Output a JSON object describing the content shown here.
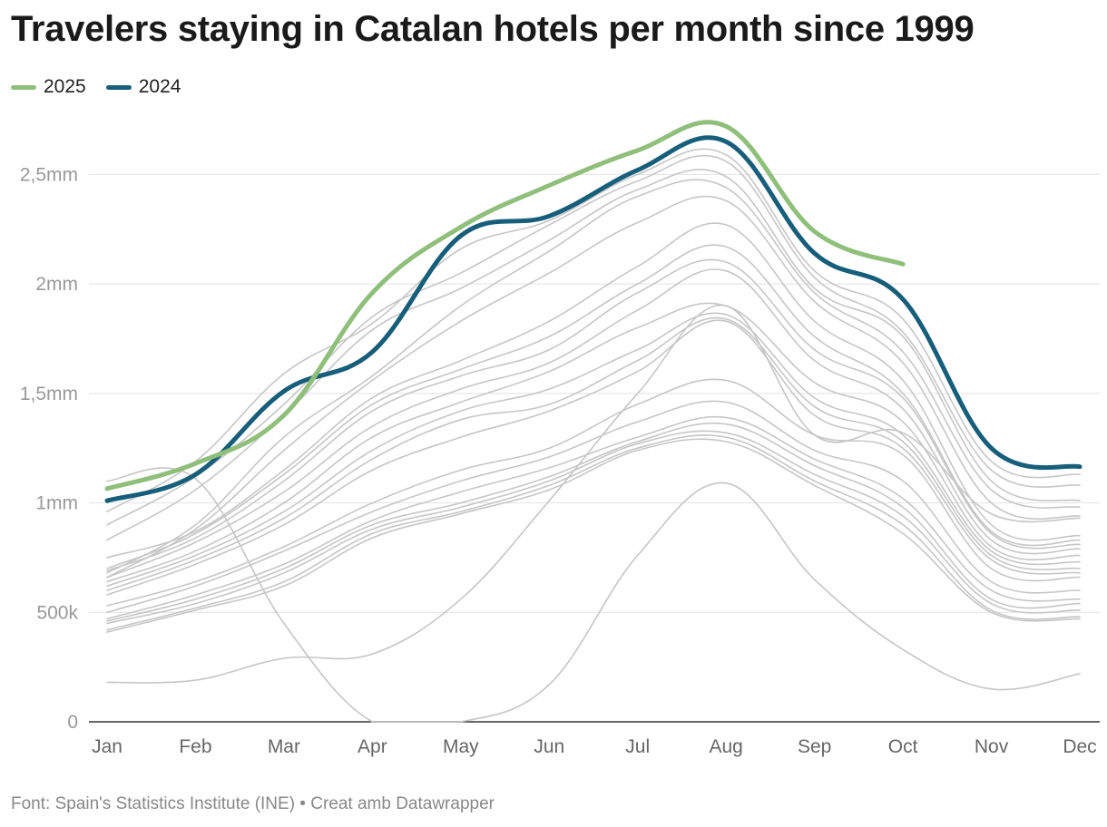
{
  "chart_data": {
    "type": "line",
    "title": "Travelers staying in Catalan hotels per month since 1999",
    "xlabel": "",
    "ylabel": "",
    "categories": [
      "Jan",
      "Feb",
      "Mar",
      "Apr",
      "May",
      "Jun",
      "Jul",
      "Aug",
      "Sep",
      "Oct",
      "Nov",
      "Dec"
    ],
    "ylim": [
      0,
      2800000
    ],
    "yticks": [
      0,
      500000,
      1000000,
      1500000,
      2000000,
      2500000
    ],
    "ytick_labels": [
      "0",
      "500k",
      "1mm",
      "1,5mm",
      "2mm",
      "2,5mm"
    ],
    "grid": true,
    "legend_position": "top-left",
    "series": [
      {
        "name": "2025",
        "color": "#8fbf7a",
        "highlight": true,
        "values": [
          1065000,
          1180000,
          1400000,
          1960000,
          2260000,
          2450000,
          2610000,
          2720000,
          2240000,
          2090000,
          null,
          null
        ]
      },
      {
        "name": "2024",
        "color": "#175e7a",
        "highlight": true,
        "values": [
          1010000,
          1130000,
          1510000,
          1690000,
          2220000,
          2310000,
          2520000,
          2650000,
          2140000,
          1930000,
          1250000,
          1165000
        ]
      },
      {
        "color": "#c6c6c6",
        "values": [
          960000,
          1190000,
          1590000,
          1820000,
          2160000,
          2290000,
          2500000,
          2590000,
          2060000,
          1840000,
          1190000,
          1130000
        ]
      },
      {
        "color": "#c6c6c6",
        "values": [
          900000,
          1120000,
          1450000,
          1850000,
          2050000,
          2270000,
          2470000,
          2560000,
          2030000,
          1780000,
          1150000,
          1080000
        ]
      },
      {
        "color": "#c6c6c6",
        "values": [
          830000,
          1060000,
          1400000,
          1790000,
          1980000,
          2200000,
          2430000,
          2490000,
          1980000,
          1760000,
          1100000,
          1010000
        ]
      },
      {
        "color": "#c6c6c6",
        "values": [
          680000,
          900000,
          1300000,
          1580000,
          1900000,
          2150000,
          2400000,
          2440000,
          1960000,
          1690000,
          1060000,
          980000
        ]
      },
      {
        "color": "#c6c6c6",
        "values": [
          660000,
          880000,
          1240000,
          1560000,
          1830000,
          2050000,
          2280000,
          2380000,
          1920000,
          1640000,
          1000000,
          940000
        ]
      },
      {
        "color": "#c6c6c6",
        "values": [
          750000,
          870000,
          1150000,
          1480000,
          1650000,
          1830000,
          2080000,
          2270000,
          1830000,
          1560000,
          900000,
          850000
        ]
      },
      {
        "color": "#c6c6c6",
        "values": [
          700000,
          860000,
          1130000,
          1450000,
          1610000,
          1760000,
          2000000,
          2170000,
          1760000,
          1500000,
          870000,
          830000
        ]
      },
      {
        "color": "#c6c6c6",
        "values": [
          690000,
          840000,
          1100000,
          1420000,
          1580000,
          1700000,
          1960000,
          2100000,
          1700000,
          1480000,
          860000,
          810000
        ]
      },
      {
        "color": "#c6c6c6",
        "values": [
          660000,
          820000,
          1050000,
          1350000,
          1520000,
          1640000,
          1880000,
          2060000,
          1650000,
          1430000,
          830000,
          790000
        ]
      },
      {
        "color": "#c6c6c6",
        "values": [
          640000,
          780000,
          1000000,
          1300000,
          1460000,
          1600000,
          1800000,
          1900000,
          1550000,
          1370000,
          800000,
          760000
        ]
      },
      {
        "color": "#c6c6c6",
        "values": [
          620000,
          760000,
          960000,
          1240000,
          1420000,
          1520000,
          1700000,
          1860000,
          1480000,
          1310000,
          780000,
          730000
        ]
      },
      {
        "color": "#c6c6c6",
        "values": [
          600000,
          740000,
          930000,
          1200000,
          1380000,
          1450000,
          1650000,
          1840000,
          1440000,
          1280000,
          760000,
          700000
        ]
      },
      {
        "color": "#c6c6c6",
        "values": [
          580000,
          720000,
          900000,
          1150000,
          1300000,
          1420000,
          1600000,
          1830000,
          1400000,
          1250000,
          740000,
          680000
        ]
      },
      {
        "color": "#c6c6c6",
        "values": [
          530000,
          640000,
          800000,
          1000000,
          1150000,
          1250000,
          1450000,
          1560000,
          1310000,
          1220000,
          700000,
          660000
        ]
      },
      {
        "color": "#c6c6c6",
        "values": [
          500000,
          620000,
          780000,
          960000,
          1100000,
          1210000,
          1370000,
          1460000,
          1240000,
          1100000,
          640000,
          600000
        ]
      },
      {
        "color": "#c6c6c6",
        "values": [
          470000,
          580000,
          720000,
          920000,
          1050000,
          1160000,
          1300000,
          1390000,
          1200000,
          1020000,
          600000,
          560000
        ]
      },
      {
        "color": "#c6c6c6",
        "values": [
          460000,
          560000,
          700000,
          900000,
          1000000,
          1120000,
          1280000,
          1360000,
          1170000,
          980000,
          560000,
          540000
        ]
      },
      {
        "color": "#c6c6c6",
        "values": [
          450000,
          540000,
          680000,
          880000,
          980000,
          1100000,
          1270000,
          1320000,
          1130000,
          940000,
          540000,
          510000
        ]
      },
      {
        "color": "#c6c6c6",
        "values": [
          420000,
          520000,
          640000,
          860000,
          960000,
          1080000,
          1250000,
          1300000,
          1100000,
          900000,
          510000,
          480000
        ]
      },
      {
        "color": "#c6c6c6",
        "values": [
          410000,
          510000,
          620000,
          840000,
          950000,
          1060000,
          1240000,
          1280000,
          1080000,
          860000,
          500000,
          470000
        ]
      },
      {
        "color": "#c6c6c6",
        "values": [
          1100000,
          1110000,
          450000,
          0,
          0,
          170000,
          760000,
          1090000,
          650000,
          330000,
          150000,
          220000
        ]
      },
      {
        "color": "#c6c6c6",
        "values": [
          180000,
          190000,
          290000,
          310000,
          560000,
          1010000,
          1500000,
          1900000,
          1310000,
          1320000,
          950000,
          930000
        ]
      }
    ]
  },
  "source": "Font: Spain's Statistics Institute (INE) • Creat amb Datawrapper"
}
